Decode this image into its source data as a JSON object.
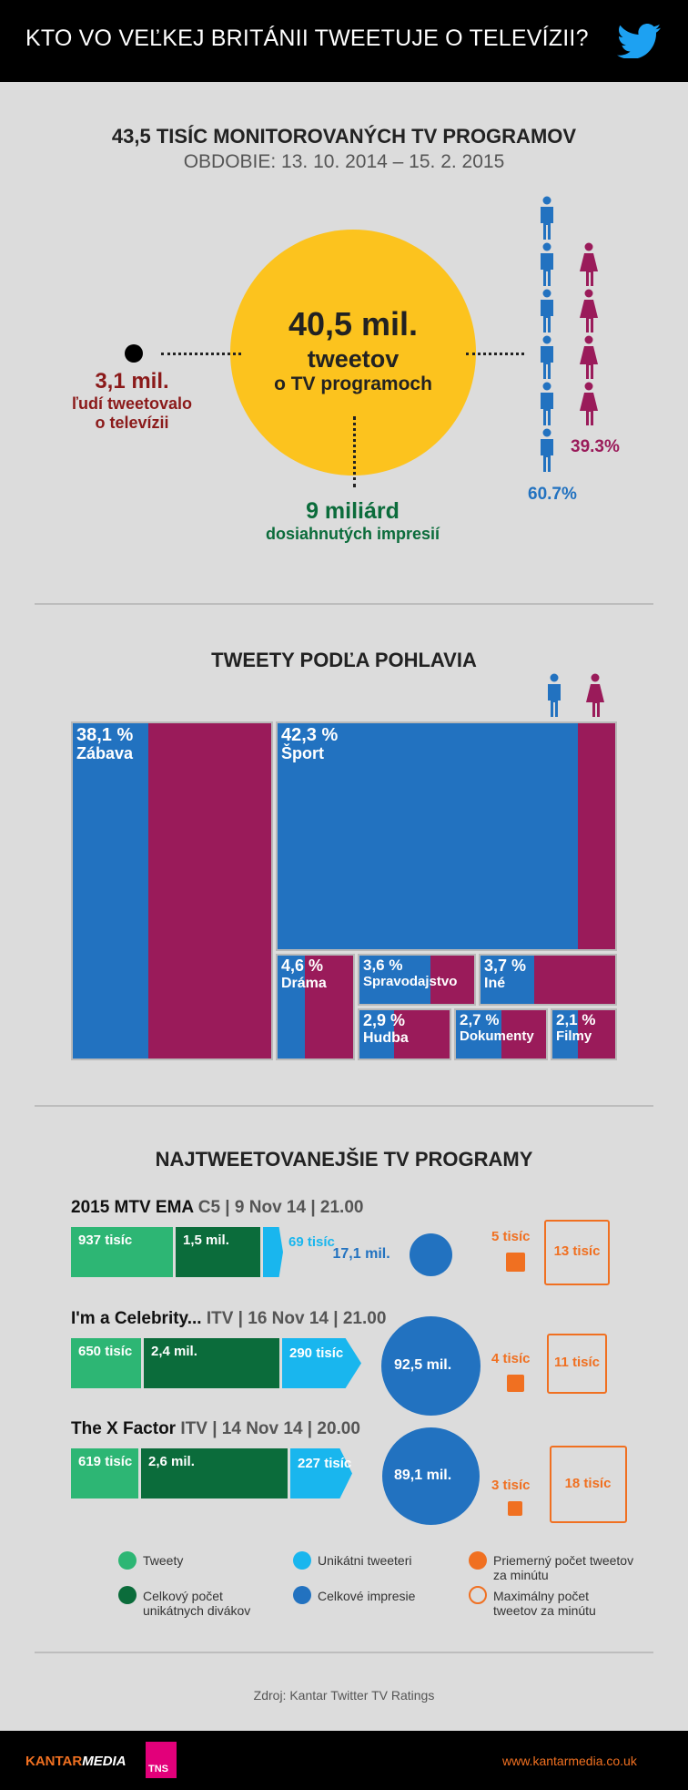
{
  "header": {
    "title": "KTO VO VEĽKEJ BRITÁNII TWEETUJE O TELEVÍZII?"
  },
  "overview": {
    "title": "43,5 TISÍC MONITOROVANÝCH TV PROGRAMOV",
    "period": "OBDOBIE: 13. 10. 2014 – 15. 2. 2015",
    "tweets_value": "40,5 mil.",
    "tweets_line1": "tweetov",
    "tweets_line2": "o TV programoch",
    "people_value": "3,1 mil.",
    "people_line1": "ľudí tweetovalo",
    "people_line2": "o televízii",
    "impressions_value": "9 miliárd",
    "impressions_label": "dosiahnutých impresií",
    "male_pct_label": "60.7%",
    "female_pct_label": "39.3%"
  },
  "gender_split": {
    "male_pct": 60.7,
    "female_pct": 39.3
  },
  "gender_section": {
    "title": "TWEETY PODĽA POHLAVIA"
  },
  "colors": {
    "male": "#2272c0",
    "female": "#9a1b5a",
    "yellow": "#fcc31e",
    "tweets": "#2db674",
    "viewers": "#0b6c3b",
    "unique": "#19b6ee",
    "impressions": "#2272c0",
    "orange": "#f07021"
  },
  "chart_data": [
    {
      "type": "treemap",
      "title": "TWEETY PODĽA POHLAVIA",
      "categories": [
        {
          "name": "Zábava",
          "pct_label": "38,1 %",
          "share": 38.1,
          "male_share": 0.38
        },
        {
          "name": "Šport",
          "pct_label": "42,3 %",
          "share": 42.3,
          "male_share": 0.89
        },
        {
          "name": "Dráma",
          "pct_label": "4,6 %",
          "share": 4.6,
          "male_share": 0.36
        },
        {
          "name": "Spravodajstvo",
          "pct_label": "3,6 %",
          "share": 3.6,
          "male_share": 0.62
        },
        {
          "name": "Iné",
          "pct_label": "3,7 %",
          "share": 3.7,
          "male_share": 0.4
        },
        {
          "name": "Hudba",
          "pct_label": "2,9 %",
          "share": 2.9,
          "male_share": 0.38
        },
        {
          "name": "Dokumenty",
          "pct_label": "2,7 %",
          "share": 2.7,
          "male_share": 0.5
        },
        {
          "name": "Filmy",
          "pct_label": "2,1 %",
          "share": 2.1,
          "male_share": 0.4
        }
      ]
    },
    {
      "type": "bar",
      "title": "NAJTWEETOVANEJŠIE TV PROGRAMY",
      "programs": [
        {
          "name": "2015 MTV EMA",
          "info": "C5 | 9 Nov 14 | 21.00",
          "tweets": 937,
          "tweets_label": "937 tisíc",
          "viewers": 1500,
          "viewers_label": "1,5 mil.",
          "unique": 69,
          "unique_label": "69 tisíc",
          "impressions": 17.1,
          "impressions_label": "17,1 mil.",
          "avg_per_min": 5,
          "avg_label": "5 tisíc",
          "max_per_min": 13,
          "max_label": "13 tisíc"
        },
        {
          "name": "I'm a Celebrity...",
          "info": "ITV | 16 Nov 14 | 21.00",
          "tweets": 650,
          "tweets_label": "650 tisíc",
          "viewers": 2400,
          "viewers_label": "2,4 mil.",
          "unique": 290,
          "unique_label": "290 tisíc",
          "impressions": 92.5,
          "impressions_label": "92,5 mil.",
          "avg_per_min": 4,
          "avg_label": "4 tisíc",
          "max_per_min": 11,
          "max_label": "11 tisíc"
        },
        {
          "name": "The X Factor",
          "info": "ITV | 14 Nov 14 | 20.00",
          "tweets": 619,
          "tweets_label": "619 tisíc",
          "viewers": 2600,
          "viewers_label": "2,6 mil.",
          "unique": 227,
          "unique_label": "227 tisíc",
          "impressions": 89.1,
          "impressions_label": "89,1 mil.",
          "avg_per_min": 3,
          "avg_label": "3 tisíc",
          "max_per_min": 18,
          "max_label": "18 tisíc"
        }
      ]
    }
  ],
  "legend": {
    "tweets": "Tweety",
    "unique": "Unikátni tweeteri",
    "avg_l1": "Priemerný počet tweetov",
    "avg_l2": "za minútu",
    "viewers_l1": "Celkový počet",
    "viewers_l2": "unikátnych divákov",
    "impressions": "Celkové impresie",
    "max_l1": "Maximálny počet",
    "max_l2": "tweetov za minútu"
  },
  "footer": {
    "source": "Zdroj: Kantar Twitter TV Ratings",
    "logo_kantar_1": "KANTAR",
    "logo_kantar_2": "MEDIA",
    "logo_tns": "TNS",
    "url": "www.kantarmedia.co.uk"
  }
}
